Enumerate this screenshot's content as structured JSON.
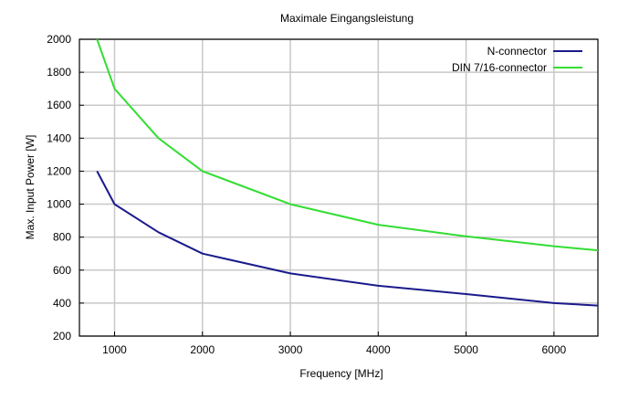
{
  "chart_data": {
    "type": "line",
    "title": "Maximale Eingangsleistung",
    "xlabel": "Frequency [MHz]",
    "ylabel": "Max. Input Power [W]",
    "xlim": [
      600,
      6500
    ],
    "ylim": [
      200,
      2000
    ],
    "xticks": [
      1000,
      2000,
      3000,
      4000,
      5000,
      6000
    ],
    "yticks": [
      200,
      400,
      600,
      800,
      1000,
      1200,
      1400,
      1600,
      1800,
      2000
    ],
    "grid": true,
    "legend_position": "top-right",
    "series": [
      {
        "name": "N-connector",
        "color": "#1a1a8c",
        "x": [
          800,
          1000,
          1500,
          2000,
          3000,
          4000,
          5000,
          6000,
          6500
        ],
        "y": [
          1200,
          1000,
          830,
          700,
          580,
          505,
          455,
          400,
          385
        ]
      },
      {
        "name": "DIN 7/16-connector",
        "color": "#33dd33",
        "x": [
          800,
          1000,
          1500,
          2000,
          3000,
          4000,
          5000,
          6000,
          6500
        ],
        "y": [
          2000,
          1700,
          1400,
          1200,
          1000,
          875,
          805,
          745,
          720
        ]
      }
    ]
  }
}
